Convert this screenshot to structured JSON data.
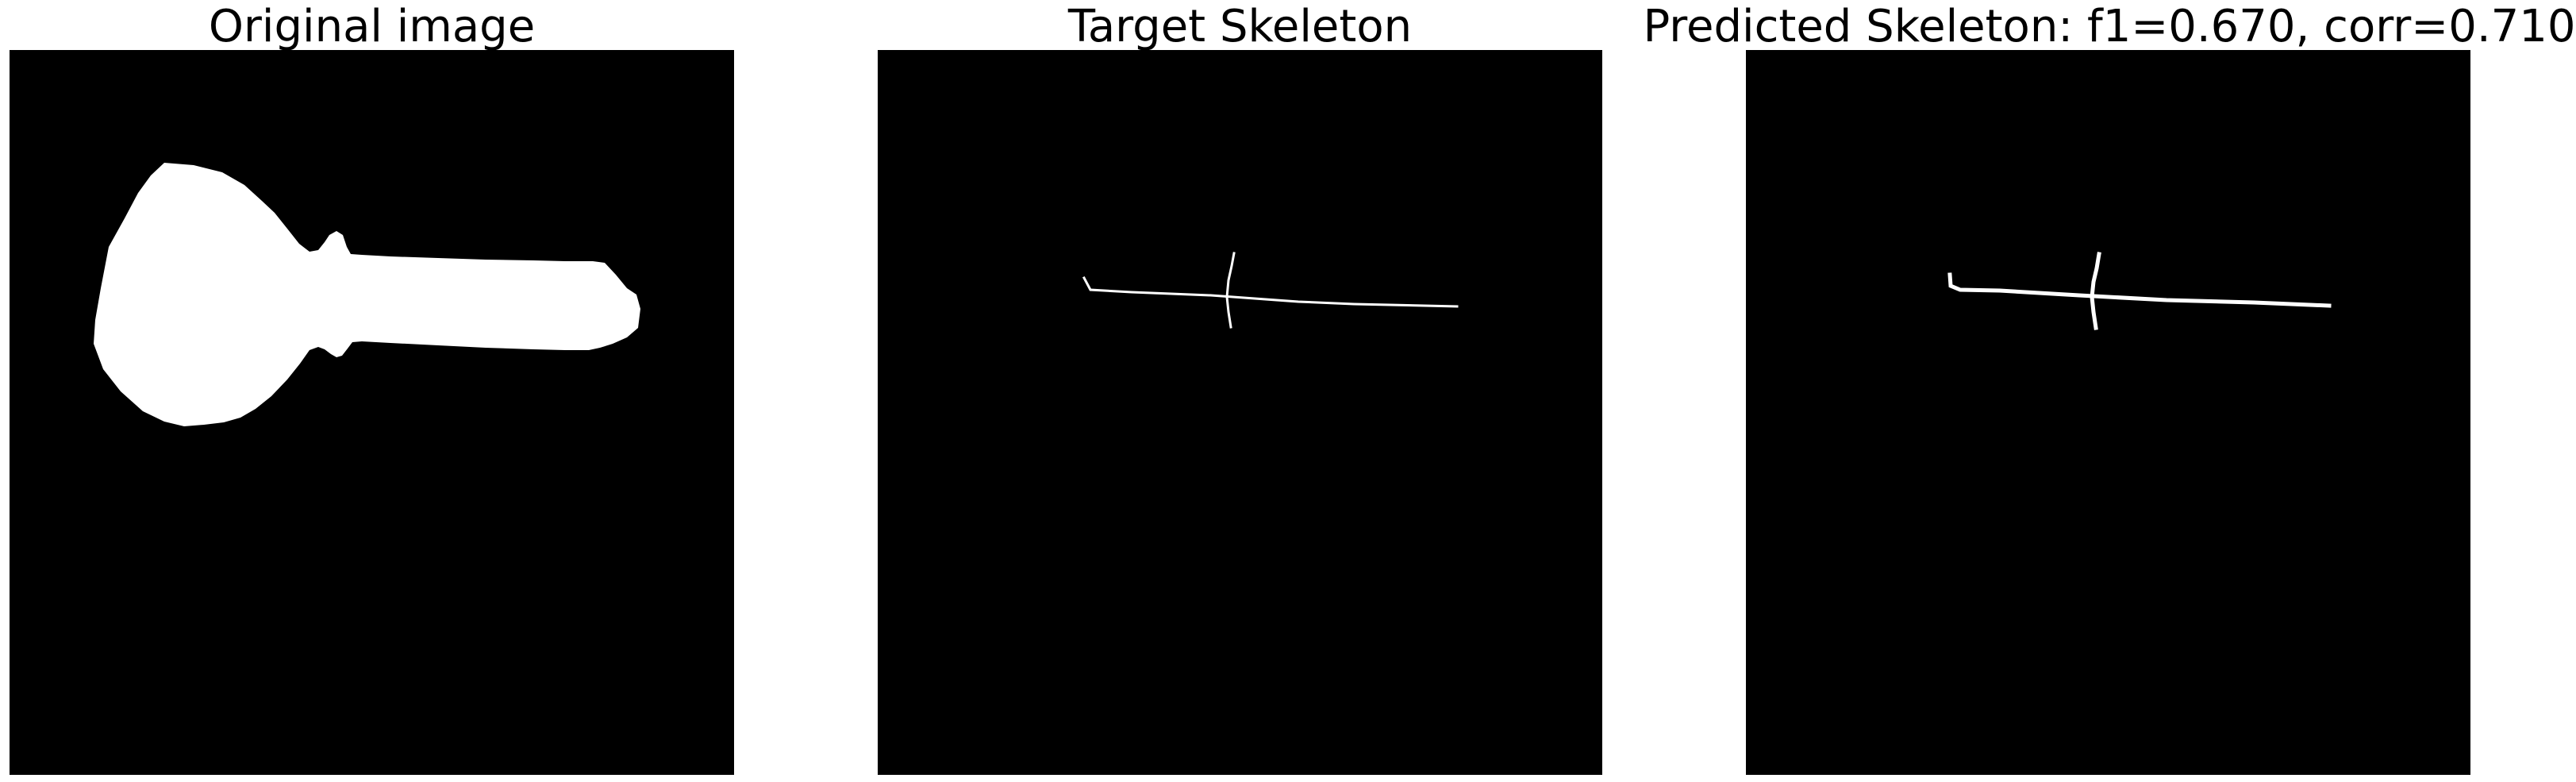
{
  "figure": {
    "panels": [
      {
        "title": "Original image",
        "content": "binary-mask"
      },
      {
        "title": "Target Skeleton",
        "content": "skeleton"
      },
      {
        "title": "Predicted Skeleton: f1=0.670, corr=0.710",
        "content": "skeleton"
      }
    ],
    "colors": {
      "background": "#000000",
      "foreground": "#ffffff",
      "page": "#ffffff"
    }
  }
}
